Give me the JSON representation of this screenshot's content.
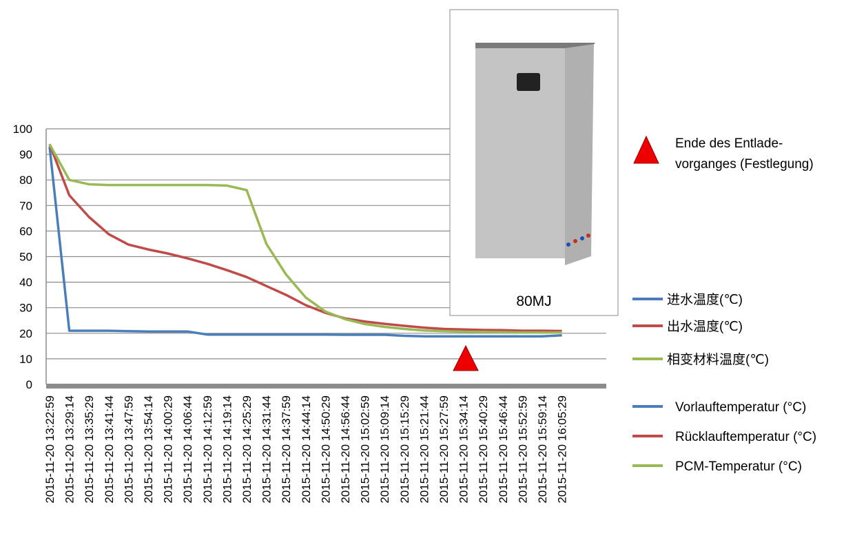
{
  "chart_data": {
    "type": "line",
    "categories": [
      "2015-11-20 13:22:59",
      "2015-11-20 13:29:14",
      "2015-11-20 13:35:29",
      "2015-11-20 13:41:44",
      "2015-11-20 13:47:59",
      "2015-11-20 13:54:14",
      "2015-11-20 14:00:29",
      "2015-11-20 14:06:44",
      "2015-11-20 14:12:59",
      "2015-11-20 14:19:14",
      "2015-11-20 14:25:29",
      "2015-11-20 14:31:44",
      "2015-11-20 14:37:59",
      "2015-11-20 14:44:14",
      "2015-11-20 14:50:29",
      "2015-11-20 14:56:44",
      "2015-11-20 15:02:59",
      "2015-11-20 15:09:14",
      "2015-11-20 15:15:29",
      "2015-11-20 15:21:44",
      "2015-11-20 15:27:59",
      "2015-11-20 15:34:14",
      "2015-11-20 15:40:29",
      "2015-11-20 15:46:44",
      "2015-11-20 15:52:59",
      "2015-11-20 15:59:14",
      "2015-11-20 16:05:29"
    ],
    "series": [
      {
        "name": "进水温度(℃)",
        "alt_name": "Vorlauftemperatur (°C)",
        "color": "#4a7ebb",
        "values": [
          93,
          21,
          21,
          21,
          20.8,
          20.7,
          20.7,
          20.7,
          19.5,
          19.5,
          19.5,
          19.5,
          19.5,
          19.5,
          19.5,
          19.4,
          19.4,
          19.4,
          19,
          18.8,
          18.8,
          18.8,
          18.8,
          18.8,
          18.8,
          18.8,
          19.2
        ]
      },
      {
        "name": "出水温度(℃)",
        "alt_name": "Rücklauftemperatur (°C)",
        "color": "#be4b48",
        "values": [
          94,
          74,
          65.5,
          58.8,
          54.7,
          52.8,
          51.2,
          49.3,
          47.2,
          44.7,
          42,
          38.5,
          35,
          31,
          28,
          25.8,
          24.6,
          23.7,
          22.9,
          22.2,
          21.7,
          21.5,
          21.3,
          21.2,
          21,
          21,
          20.9
        ]
      },
      {
        "name": "相变材料温度(℃)",
        "alt_name": "PCM-Temperatur (°C)",
        "color": "#98b954",
        "values": [
          94,
          80,
          78.3,
          78,
          78,
          78,
          78,
          78,
          78,
          77.8,
          76,
          55,
          43,
          34,
          28.5,
          25.5,
          23.6,
          22.5,
          21.7,
          21.1,
          20.8,
          20.6,
          20.5,
          20.4,
          20.3,
          20.3,
          20.3
        ]
      }
    ],
    "ylim": [
      0,
      100
    ],
    "yticks": [
      0,
      10,
      20,
      30,
      40,
      50,
      60,
      70,
      80,
      90,
      100
    ],
    "grid": true,
    "annotation": "Ende des Entlade-\nvorganges (Festlegung)",
    "inset_caption": "80MJ"
  }
}
